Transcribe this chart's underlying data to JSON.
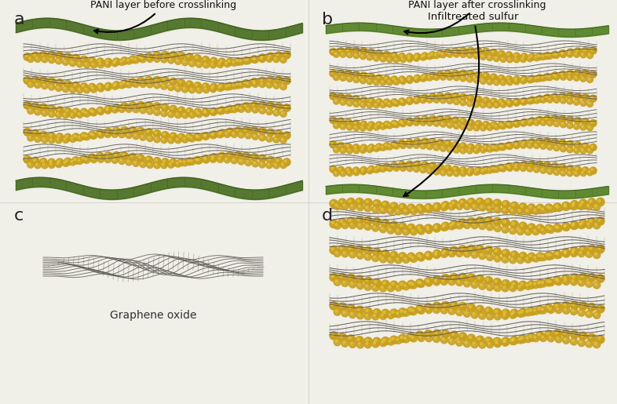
{
  "bg_color": "#f0efe8",
  "panel_labels": [
    "a",
    "b",
    "c",
    "d"
  ],
  "go_color": "#5a5550",
  "sulfur_color": "#c8a020",
  "sulfur_color2": "#d4b030",
  "pani_color": "#4a7020",
  "pani_dark": "#3a5a18",
  "pani_light": "#6a9a30"
}
